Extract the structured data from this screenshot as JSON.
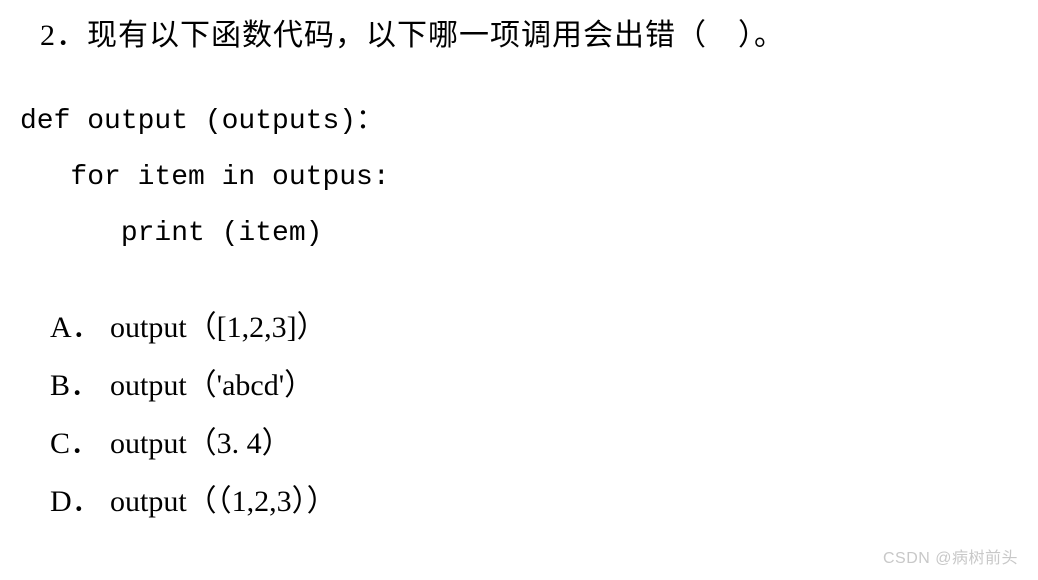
{
  "question": {
    "number": "2．",
    "text": "现有以下函数代码，以下哪一项调用会出错（　）。"
  },
  "code": {
    "line1": "def output (outputs)：",
    "line2": "   for item in outpus:",
    "line3": "      print (item)"
  },
  "options": {
    "A": {
      "label": "A．",
      "text": "output（[1,2,3]）"
    },
    "B": {
      "label": "B．",
      "text": "output（'abcd'）"
    },
    "C": {
      "label": "C．",
      "text": "output（3. 4）"
    },
    "D": {
      "label": "D．",
      "text": "output（（1,2,3））"
    }
  },
  "watermark": "CSDN @病树前头"
}
